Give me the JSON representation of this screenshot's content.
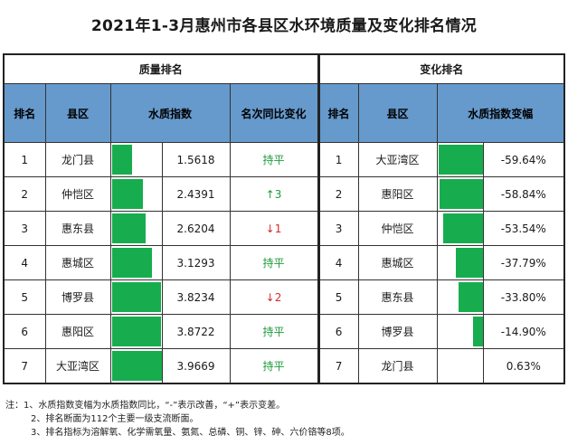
{
  "title": "2021年1-3月惠州市各县区水环境质量及变化排名情况",
  "groups": {
    "left": "质量排名",
    "right": "变化排名"
  },
  "columns": {
    "rank": "排名",
    "county": "县区",
    "index": "水质指数",
    "yoy": "名次同比变化",
    "rank2": "排名",
    "county2": "县区",
    "change": "水质指数变幅"
  },
  "quality_rows": [
    {
      "rank": "1",
      "county": "龙门县",
      "index": "1.5618",
      "index_value": 1.5618,
      "yoy": "持平",
      "yoy_type": "flat"
    },
    {
      "rank": "2",
      "county": "仲恺区",
      "index": "2.4391",
      "index_value": 2.4391,
      "yoy": "↑3",
      "yoy_type": "up"
    },
    {
      "rank": "3",
      "county": "惠东县",
      "index": "2.6204",
      "index_value": 2.6204,
      "yoy": "↓1",
      "yoy_type": "down"
    },
    {
      "rank": "4",
      "county": "惠城区",
      "index": "3.1293",
      "index_value": 3.1293,
      "yoy": "持平",
      "yoy_type": "flat"
    },
    {
      "rank": "5",
      "county": "博罗县",
      "index": "3.8234",
      "index_value": 3.8234,
      "yoy": "↓2",
      "yoy_type": "down"
    },
    {
      "rank": "6",
      "county": "惠阳区",
      "index": "3.8722",
      "index_value": 3.8722,
      "yoy": "持平",
      "yoy_type": "flat"
    },
    {
      "rank": "7",
      "county": "大亚湾区",
      "index": "3.9669",
      "index_value": 3.9669,
      "yoy": "持平",
      "yoy_type": "flat"
    }
  ],
  "change_rows": [
    {
      "rank": "1",
      "county": "大亚湾区",
      "change": "-59.64%",
      "change_value": -59.64
    },
    {
      "rank": "2",
      "county": "惠阳区",
      "change": "-58.84%",
      "change_value": -58.84
    },
    {
      "rank": "3",
      "county": "仲恺区",
      "change": "-53.54%",
      "change_value": -53.54
    },
    {
      "rank": "4",
      "county": "惠城区",
      "change": "-37.79%",
      "change_value": -37.79
    },
    {
      "rank": "5",
      "county": "惠东县",
      "change": "-33.80%",
      "change_value": -33.8
    },
    {
      "rank": "6",
      "county": "博罗县",
      "change": "-14.90%",
      "change_value": -14.9
    },
    {
      "rank": "7",
      "county": "龙门县",
      "change": "0.63%",
      "change_value": 0.63
    }
  ],
  "bar_color": "#17ad4e",
  "header_color": "#6699cc",
  "notes": [
    "注：1、水质指数变幅为水质指数同比，“-”表示改善，“+”表示变差。",
    "2、排名断面为112个主要一级支流断面。",
    "3、排名指标为溶解氧、化学需氧量、氨氮、总磷、铜、锌、砷、六价铬等8项。"
  ]
}
